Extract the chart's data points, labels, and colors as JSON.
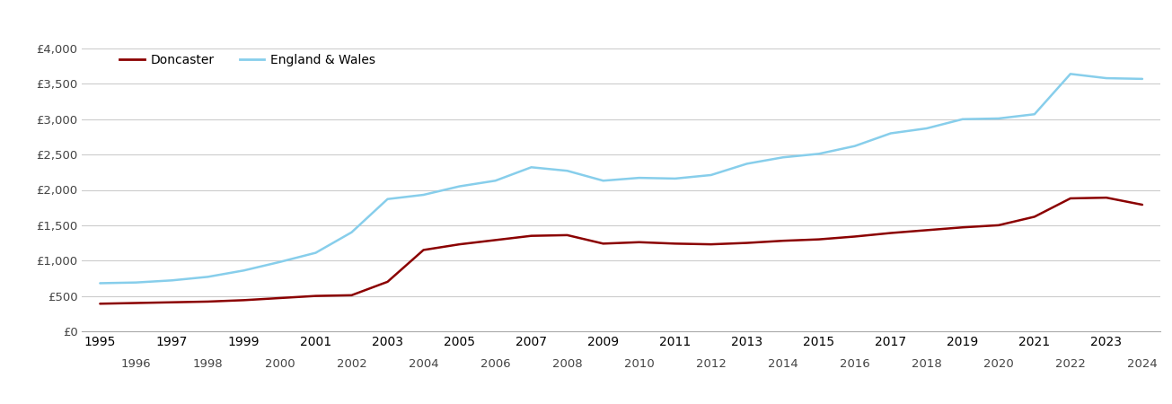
{
  "years": [
    1995,
    1996,
    1997,
    1998,
    1999,
    2000,
    2001,
    2002,
    2003,
    2004,
    2005,
    2006,
    2007,
    2008,
    2009,
    2010,
    2011,
    2012,
    2013,
    2014,
    2015,
    2016,
    2017,
    2018,
    2019,
    2020,
    2021,
    2022,
    2023,
    2024
  ],
  "doncaster": [
    390,
    400,
    410,
    420,
    440,
    470,
    500,
    510,
    700,
    1150,
    1230,
    1290,
    1350,
    1360,
    1240,
    1260,
    1240,
    1230,
    1250,
    1280,
    1300,
    1340,
    1390,
    1430,
    1470,
    1500,
    1620,
    1880,
    1890,
    1790
  ],
  "england_wales": [
    680,
    690,
    720,
    770,
    860,
    980,
    1110,
    1400,
    1870,
    1930,
    2050,
    2130,
    2320,
    2270,
    2130,
    2170,
    2160,
    2210,
    2370,
    2460,
    2510,
    2620,
    2800,
    2870,
    3000,
    3010,
    3070,
    3640,
    3580,
    3570
  ],
  "doncaster_color": "#8B0000",
  "england_wales_color": "#87CEEB",
  "background_color": "#ffffff",
  "grid_color": "#cccccc",
  "ylim": [
    0,
    4000
  ],
  "yticks": [
    0,
    500,
    1000,
    1500,
    2000,
    2500,
    3000,
    3500,
    4000
  ],
  "ytick_labels": [
    "£0",
    "£500",
    "£1,000",
    "£1,500",
    "£2,000",
    "£2,500",
    "£3,000",
    "£3,500",
    "£4,000"
  ],
  "legend_doncaster": "Doncaster",
  "legend_england_wales": "England & Wales",
  "line_width": 1.8,
  "xlim_left": 1994.5,
  "xlim_right": 2024.5
}
